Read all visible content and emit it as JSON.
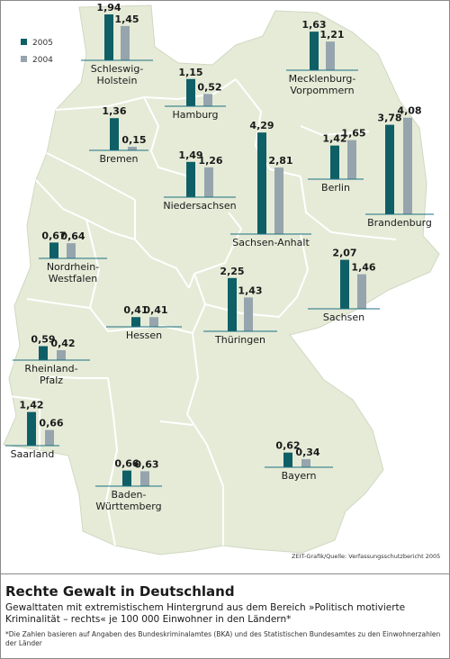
{
  "chart_data": {
    "type": "bar",
    "title": "Rechte Gewalt in Deutschland",
    "subtitle": "Gewalttaten mit extremistischem Hintergrund aus dem Bereich »Politisch motivierte Kriminalität – rechts« je 100 000 Einwohner in den Ländern*",
    "footnote": "*Die Zahlen basieren auf Angaben des Bundeskriminalamtes (BKA) und des Statistischen Bundesamtes zu den Einwohnerzahlen der Länder",
    "source": "ZEIT-Grafik/Quelle: Verfassungsschutzbericht 2005",
    "series": [
      {
        "name": "2005",
        "color": "#0f5f66"
      },
      {
        "name": "2004",
        "color": "#96a5ad"
      }
    ],
    "categories": [
      "Schleswig-Holstein",
      "Mecklenburg-Vorpommern",
      "Hamburg",
      "Bremen",
      "Niedersachsen",
      "Berlin",
      "Brandenburg",
      "Sachsen-Anhalt",
      "Nordrhein-Westfalen",
      "Sachsen",
      "Thüringen",
      "Hessen",
      "Rheinland-Pfalz",
      "Saarland",
      "Bayern",
      "Baden-Württemberg"
    ],
    "states": [
      {
        "name": "Schleswig-Holstein",
        "label_lines": [
          "Schleswig-",
          "Holstein"
        ],
        "v2005": 1.94,
        "v2004": 1.45,
        "v2005_text": "1,94",
        "v2004_text": "1,45"
      },
      {
        "name": "Mecklenburg-Vorpommern",
        "label_lines": [
          "Mecklenburg-",
          "Vorpommern"
        ],
        "v2005": 1.63,
        "v2004": 1.21,
        "v2005_text": "1,63",
        "v2004_text": "1,21"
      },
      {
        "name": "Hamburg",
        "label_lines": [
          "Hamburg"
        ],
        "v2005": 1.15,
        "v2004": 0.52,
        "v2005_text": "1,15",
        "v2004_text": "0,52"
      },
      {
        "name": "Bremen",
        "label_lines": [
          "Bremen"
        ],
        "v2005": 1.36,
        "v2004": 0.15,
        "v2005_text": "1,36",
        "v2004_text": "0,15"
      },
      {
        "name": "Niedersachsen",
        "label_lines": [
          "Niedersachsen"
        ],
        "v2005": 1.49,
        "v2004": 1.26,
        "v2005_text": "1,49",
        "v2004_text": "1,26"
      },
      {
        "name": "Berlin",
        "label_lines": [
          "Berlin"
        ],
        "v2005": 1.42,
        "v2004": 1.65,
        "v2005_text": "1,42",
        "v2004_text": "1,65"
      },
      {
        "name": "Brandenburg",
        "label_lines": [
          "Brandenburg"
        ],
        "v2005": 3.78,
        "v2004": 4.08,
        "v2005_text": "3,78",
        "v2004_text": "4,08"
      },
      {
        "name": "Sachsen-Anhalt",
        "label_lines": [
          "Sachsen-Anhalt"
        ],
        "v2005": 4.29,
        "v2004": 2.81,
        "v2005_text": "4,29",
        "v2004_text": "2,81"
      },
      {
        "name": "Nordrhein-Westfalen",
        "label_lines": [
          "Nordrhein-",
          "Westfalen"
        ],
        "v2005": 0.67,
        "v2004": 0.64,
        "v2005_text": "0,67",
        "v2004_text": "0,64"
      },
      {
        "name": "Sachsen",
        "label_lines": [
          "Sachsen"
        ],
        "v2005": 2.07,
        "v2004": 1.46,
        "v2005_text": "2,07",
        "v2004_text": "1,46"
      },
      {
        "name": "Thüringen",
        "label_lines": [
          "Thüringen"
        ],
        "v2005": 2.25,
        "v2004": 1.43,
        "v2005_text": "2,25",
        "v2004_text": "1,43"
      },
      {
        "name": "Hessen",
        "label_lines": [
          "Hessen"
        ],
        "v2005": 0.41,
        "v2004": 0.41,
        "v2005_text": "0,41",
        "v2004_text": "0,41"
      },
      {
        "name": "Rheinland-Pfalz",
        "label_lines": [
          "Rheinland-",
          "Pfalz"
        ],
        "v2005": 0.59,
        "v2004": 0.42,
        "v2005_text": "0,59",
        "v2004_text": "0,42"
      },
      {
        "name": "Saarland",
        "label_lines": [
          "Saarland"
        ],
        "v2005": 1.42,
        "v2004": 0.66,
        "v2005_text": "1,42",
        "v2004_text": "0,66"
      },
      {
        "name": "Bayern",
        "label_lines": [
          "Bayern"
        ],
        "v2005": 0.62,
        "v2004": 0.34,
        "v2005_text": "0,62",
        "v2004_text": "0,34"
      },
      {
        "name": "Baden-Württemberg",
        "label_lines": [
          "Baden-",
          "Württemberg"
        ],
        "v2005": 0.66,
        "v2004": 0.63,
        "v2005_text": "0,66",
        "v2004_text": "0,63"
      }
    ]
  },
  "colors": {
    "map_fill": "#e5ebd7",
    "border": "#ffffff",
    "baseline": "#1d6f80"
  }
}
